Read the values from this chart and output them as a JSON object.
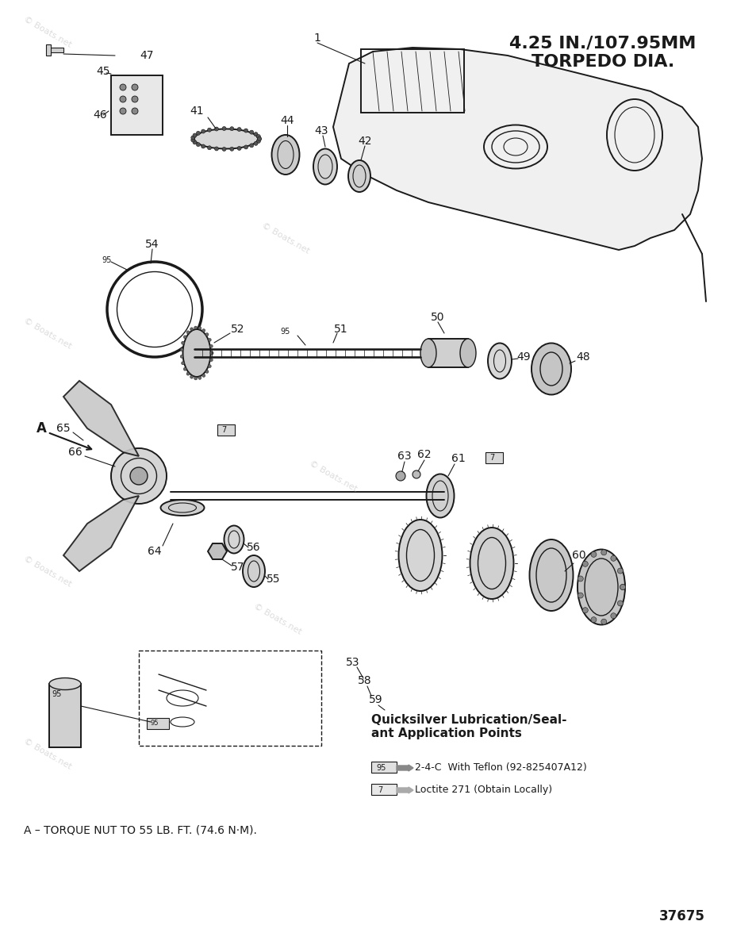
{
  "title": "4.25 IN./107.95MM\nTORPEDO DIA.",
  "watermark": "© Boats.net",
  "page_number": "37675",
  "footer_note_a": "A – TORQUE NUT TO 55 LB. FT. (74.6 N·M).",
  "legend_title": "Quicksilver Lubrication/Seal-\nant Application Points",
  "legend_item1": "2-4-C  With Teflon (92-825407A12)",
  "legend_item2": "Loctite 271 (Obtain Locally)",
  "legend_label1": "95",
  "legend_label2": "7",
  "bg_color": "#ffffff",
  "line_color": "#1a1a1a",
  "part_numbers": [
    1,
    41,
    42,
    43,
    44,
    45,
    46,
    47,
    48,
    49,
    50,
    51,
    52,
    53,
    54,
    55,
    56,
    57,
    58,
    59,
    60,
    61,
    62,
    63,
    64,
    65,
    66,
    7,
    95
  ],
  "callout_A_label": "A",
  "callout_A_note": "A"
}
